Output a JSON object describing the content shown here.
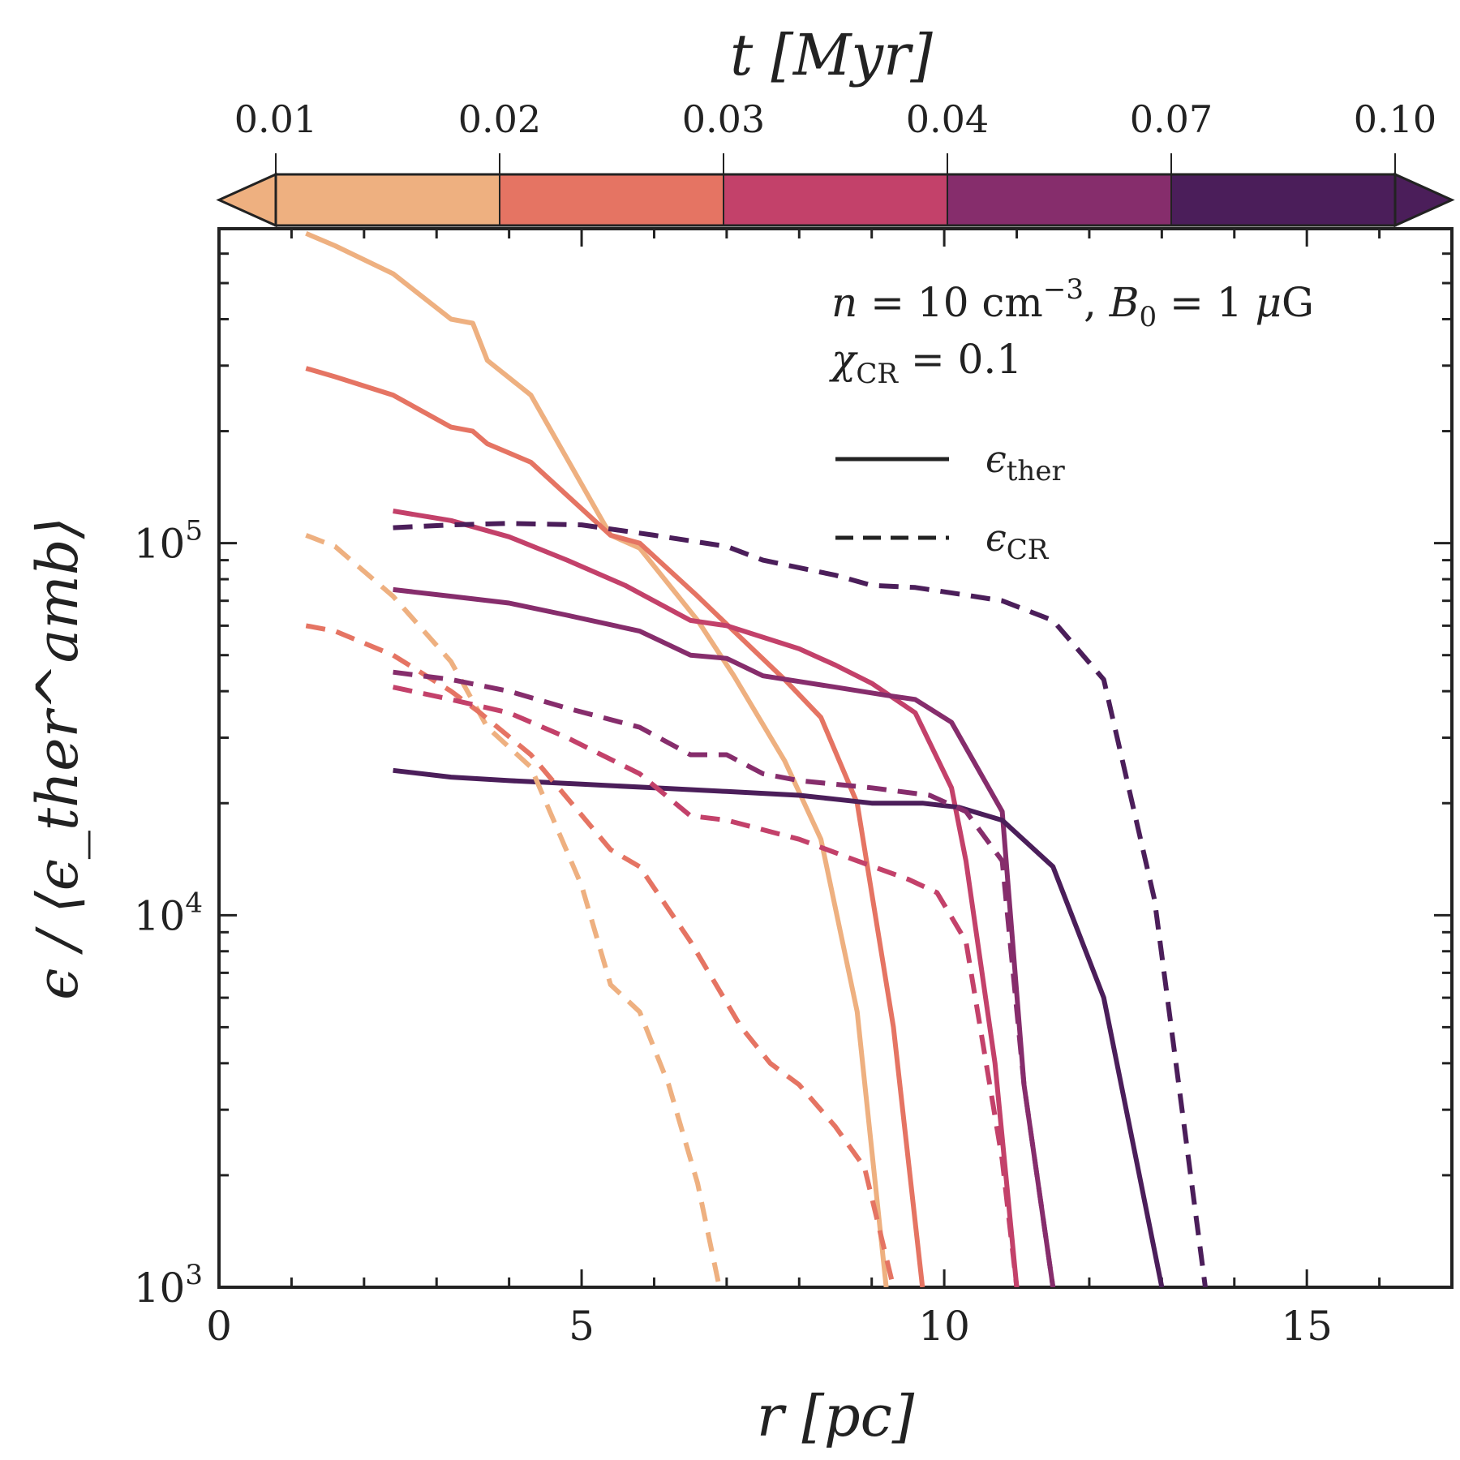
{
  "chart_data": {
    "type": "line",
    "title": "",
    "xlabel": "r [pc]",
    "ylabel": "ϵ / ⟨ϵ_ther^amb⟩",
    "xlim": [
      0,
      17
    ],
    "ylim": [
      1000,
      700000
    ],
    "yscale": "log",
    "grid": false,
    "x_ticks": [
      0,
      5,
      10,
      15
    ],
    "x_tick_labels": [
      "0",
      "5",
      "10",
      "15"
    ],
    "y_ticks": [
      {
        "value": 1000,
        "base": "10",
        "exp": "3"
      },
      {
        "value": 10000,
        "base": "10",
        "exp": "4"
      },
      {
        "value": 100000,
        "base": "10",
        "exp": "5"
      }
    ],
    "annotation": {
      "line1": {
        "a": "n",
        "b": " = 10 cm",
        "c": "−3",
        "d": ", ",
        "e": "B",
        "f": "0",
        "g": " = 1 ",
        "h": "μ",
        "i": "G"
      },
      "line2": {
        "a": "χ",
        "b": "CR",
        "c": " = 0.1"
      }
    },
    "legend": [
      {
        "symbol": "ϵ",
        "sub": "ther",
        "style": "solid"
      },
      {
        "symbol": "ϵ",
        "sub": "CR",
        "style": "dashed"
      }
    ],
    "colorbar": {
      "label": "t [Myr]",
      "ticks": [
        "0.01",
        "0.02",
        "0.03",
        "0.04",
        "0.07",
        "0.10"
      ],
      "colors": [
        "#eeb080",
        "#e57463",
        "#c3416a",
        "#862d6c",
        "#4b1e5a"
      ]
    },
    "series": [
      {
        "name": "ϵ_ther, t=0.01 Myr",
        "kind": "ther",
        "time": "0.01",
        "color": "#eeb080",
        "style": "solid",
        "x": [
          1.2,
          1.6,
          2.4,
          3.2,
          3.5,
          3.7,
          4.3,
          5.4,
          5.8,
          6.6,
          7.1,
          7.8,
          8.3,
          8.8,
          9.2
        ],
        "y": [
          680000,
          630000,
          530000,
          400000,
          390000,
          310000,
          250000,
          105000,
          97000,
          62000,
          44000,
          26000,
          16000,
          5500,
          1000
        ]
      },
      {
        "name": "ϵ_ther, t=0.02 Myr",
        "kind": "ther",
        "time": "0.02",
        "color": "#e57463",
        "style": "solid",
        "x": [
          1.2,
          1.6,
          2.4,
          3.2,
          3.5,
          3.7,
          4.3,
          5.4,
          5.8,
          6.6,
          7.1,
          7.8,
          8.3,
          8.8,
          9.3,
          9.7
        ],
        "y": [
          295000,
          280000,
          250000,
          205000,
          200000,
          185000,
          165000,
          105000,
          100000,
          72000,
          58000,
          43000,
          34000,
          20000,
          5000,
          1000
        ]
      },
      {
        "name": "ϵ_ther, t=0.03 Myr",
        "kind": "ther",
        "time": "0.03",
        "color": "#c3416a",
        "style": "solid",
        "x": [
          2.4,
          3.2,
          4.0,
          4.8,
          5.6,
          6.5,
          7.0,
          8.0,
          8.5,
          9.0,
          9.6,
          10.1,
          10.3,
          10.7,
          11.0
        ],
        "y": [
          122000,
          115000,
          104000,
          90000,
          77000,
          62000,
          60000,
          52000,
          47000,
          42000,
          35000,
          22000,
          14000,
          4000,
          1000
        ]
      },
      {
        "name": "ϵ_ther, t=0.04 Myr",
        "kind": "ther",
        "time": "0.04",
        "color": "#862d6c",
        "style": "solid",
        "x": [
          2.4,
          3.2,
          4.0,
          4.8,
          5.8,
          6.5,
          7.0,
          7.5,
          8.5,
          9.2,
          9.6,
          10.1,
          10.8,
          11.1,
          11.5
        ],
        "y": [
          75000,
          72000,
          69000,
          64000,
          58000,
          50000,
          49000,
          44000,
          41000,
          39000,
          38000,
          33000,
          19000,
          3500,
          1000
        ]
      },
      {
        "name": "ϵ_ther, t=0.10 Myr",
        "kind": "ther",
        "time": "0.10",
        "color": "#4b1e5a",
        "style": "solid",
        "x": [
          2.4,
          3.2,
          4.0,
          5.0,
          6.0,
          7.0,
          8.0,
          8.5,
          9.0,
          9.7,
          10.2,
          10.8,
          11.5,
          12.2,
          13.0
        ],
        "y": [
          24500,
          23500,
          23000,
          22500,
          22000,
          21500,
          21000,
          20500,
          20000,
          20000,
          19500,
          18000,
          13500,
          6000,
          1000
        ]
      },
      {
        "name": "ϵ_CR, t=0.01 Myr",
        "kind": "CR",
        "time": "0.01",
        "color": "#eeb080",
        "style": "dashed",
        "x": [
          1.2,
          1.6,
          2.4,
          3.2,
          3.7,
          4.3,
          5.0,
          5.4,
          5.8,
          6.2,
          6.6,
          6.9
        ],
        "y": [
          105000,
          98000,
          72000,
          48000,
          32000,
          25000,
          12000,
          6500,
          5500,
          3500,
          1900,
          1000
        ]
      },
      {
        "name": "ϵ_CR, t=0.02 Myr",
        "kind": "CR",
        "time": "0.02",
        "color": "#e57463",
        "style": "dashed",
        "x": [
          1.2,
          1.6,
          2.4,
          3.2,
          3.6,
          4.3,
          5.4,
          5.8,
          6.5,
          7.2,
          7.6,
          8.0,
          8.5,
          8.9,
          9.3
        ],
        "y": [
          60000,
          58000,
          50000,
          40000,
          35000,
          27000,
          15000,
          13500,
          8500,
          5000,
          4000,
          3500,
          2700,
          2100,
          1000
        ]
      },
      {
        "name": "ϵ_CR, t=0.03 Myr",
        "kind": "CR",
        "time": "0.03",
        "color": "#c3416a",
        "style": "dashed",
        "x": [
          2.4,
          3.2,
          4.0,
          4.8,
          5.8,
          6.5,
          7.0,
          8.0,
          8.8,
          9.5,
          9.9,
          10.3,
          10.8,
          11.0
        ],
        "y": [
          41000,
          38000,
          35000,
          30000,
          24000,
          18500,
          18000,
          16000,
          14000,
          12500,
          11500,
          8500,
          2200,
          1000
        ]
      },
      {
        "name": "ϵ_CR, t=0.04 Myr",
        "kind": "CR",
        "time": "0.04",
        "color": "#862d6c",
        "style": "dashed",
        "x": [
          2.4,
          3.2,
          4.0,
          4.8,
          5.8,
          6.5,
          7.0,
          7.5,
          8.0,
          9.0,
          9.8,
          10.3,
          10.8,
          11.1,
          11.5
        ],
        "y": [
          45000,
          43000,
          40000,
          36000,
          32000,
          27000,
          27000,
          24000,
          23000,
          22000,
          21000,
          19000,
          14000,
          3500,
          1000
        ]
      },
      {
        "name": "ϵ_CR, t=0.10 Myr",
        "kind": "CR",
        "time": "0.10",
        "color": "#4b1e5a",
        "style": "dashed",
        "x": [
          2.4,
          3.2,
          4.0,
          5.0,
          6.0,
          7.0,
          7.5,
          8.5,
          9.0,
          9.6,
          10.2,
          10.8,
          11.5,
          12.2,
          12.9,
          13.6
        ],
        "y": [
          110000,
          112000,
          113000,
          112000,
          105000,
          98000,
          90000,
          82000,
          77000,
          76000,
          73000,
          70000,
          62000,
          43000,
          11000,
          1000
        ]
      }
    ]
  }
}
